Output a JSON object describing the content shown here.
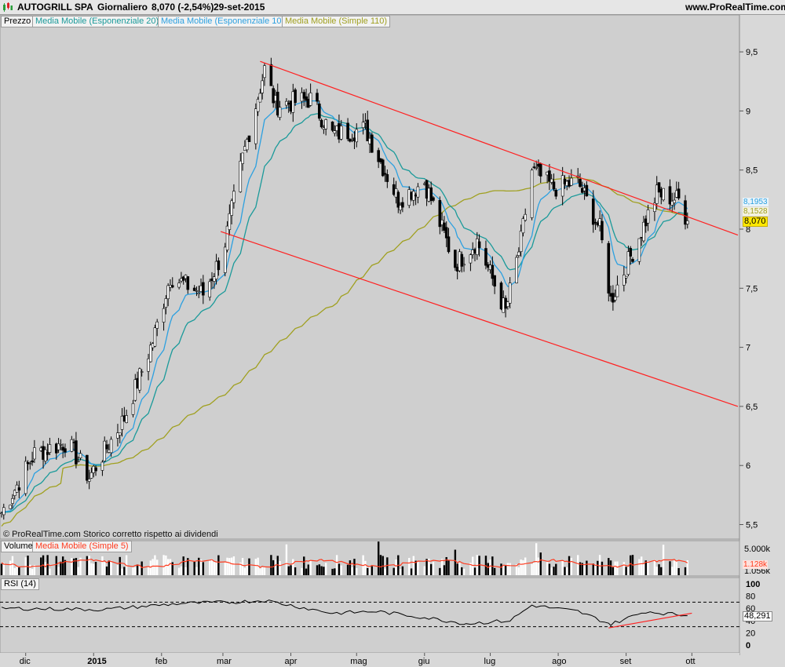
{
  "header": {
    "symbol": "AUTOGRILL SPA",
    "period": "Giornaliero",
    "quote": "8,070 (-2,54%)",
    "date": "29-set-2015",
    "site": "www.ProRealTime.com"
  },
  "legend": {
    "price": "Prezzo",
    "ema20": "Media Mobile (Esponenziale 20)",
    "ema10": "Media Mobile (Esponenziale 10)",
    "sma110": "Media Mobile (Simple 110)",
    "volume": "Volume",
    "vol_ma": "Media Mobile (Simple 5)",
    "rsi": "RSI (14)"
  },
  "footer": "© ProRealTime.com  Storico corretto rispetto ai dividendi",
  "colors": {
    "background": "#cfcfcf",
    "ema20": "#1a9a9a",
    "ema10": "#2ca0e0",
    "sma110": "#a0a020",
    "trendline": "#ff2020",
    "volume_ma": "#ff3b1f",
    "candle_up": "#ffffff",
    "candle_down": "#000000"
  },
  "chart_data": [
    {
      "type": "candlestick",
      "title": "AUTOGRILL SPA",
      "x_ticks": [
        "dic",
        "2015",
        "feb",
        "mar",
        "apr",
        "mag",
        "giu",
        "lug",
        "ago",
        "set",
        "ott"
      ],
      "y_ticks": [
        "9,5",
        "9",
        "8,5",
        "8",
        "7,5",
        "7",
        "6,5",
        "6",
        "5,5"
      ],
      "ylim": [
        5.3,
        9.95
      ],
      "last_price": "8,070",
      "value_labels": {
        "ema10": "8,1953",
        "sma110": "8,1528"
      },
      "anchor_closes": [
        {
          "date": "2014-11-20",
          "close": 5.6
        },
        {
          "date": "2014-12-05",
          "close": 6.1
        },
        {
          "date": "2014-12-20",
          "close": 6.2
        },
        {
          "date": "2014-12-30",
          "close": 5.9
        },
        {
          "date": "2015-01-15",
          "close": 6.4
        },
        {
          "date": "2015-01-28",
          "close": 7.05
        },
        {
          "date": "2015-02-05",
          "close": 7.6
        },
        {
          "date": "2015-02-20",
          "close": 7.45
        },
        {
          "date": "2015-03-01",
          "close": 7.8
        },
        {
          "date": "2015-03-10",
          "close": 8.6
        },
        {
          "date": "2015-03-20",
          "close": 9.35
        },
        {
          "date": "2015-03-25",
          "close": 9.05
        },
        {
          "date": "2015-04-10",
          "close": 9.1
        },
        {
          "date": "2015-04-20",
          "close": 8.8
        },
        {
          "date": "2015-05-05",
          "close": 8.85
        },
        {
          "date": "2015-05-20",
          "close": 8.25
        },
        {
          "date": "2015-06-01",
          "close": 8.4
        },
        {
          "date": "2015-06-15",
          "close": 7.7
        },
        {
          "date": "2015-06-25",
          "close": 7.9
        },
        {
          "date": "2015-07-08",
          "close": 7.3
        },
        {
          "date": "2015-07-15",
          "close": 7.9
        },
        {
          "date": "2015-07-20",
          "close": 8.5
        },
        {
          "date": "2015-07-30",
          "close": 8.35
        },
        {
          "date": "2015-08-10",
          "close": 8.4
        },
        {
          "date": "2015-08-20",
          "close": 8.0
        },
        {
          "date": "2015-08-25",
          "close": 7.4
        },
        {
          "date": "2015-09-05",
          "close": 7.85
        },
        {
          "date": "2015-09-15",
          "close": 8.3
        },
        {
          "date": "2015-09-25",
          "close": 8.25
        },
        {
          "date": "2015-09-29",
          "close": 8.07
        }
      ],
      "trendlines": [
        {
          "from": [
            "2015-03-18",
            9.42
          ],
          "to": [
            "2015-10-22",
            7.95
          ]
        },
        {
          "from": [
            "2015-02-28",
            7.98
          ],
          "to": [
            "2015-10-22",
            6.5
          ]
        }
      ]
    },
    {
      "type": "bar",
      "title": "Volume",
      "y_ticks": [
        "5.000k",
        "1.056k"
      ],
      "last_value": "1.056k",
      "ma_label": "1.128k"
    },
    {
      "type": "line",
      "title": "RSI (14)",
      "y_ticks": [
        "100",
        "80",
        "60",
        "40",
        "20",
        "0"
      ],
      "ylim": [
        0,
        100
      ],
      "reference_lines": [
        70,
        30
      ],
      "last_value": "48,291",
      "anchors": [
        {
          "date": "2014-11-20",
          "rsi": 60
        },
        {
          "date": "2015-01-05",
          "rsi": 58
        },
        {
          "date": "2015-02-10",
          "rsi": 68
        },
        {
          "date": "2015-03-05",
          "rsi": 70
        },
        {
          "date": "2015-03-20",
          "rsi": 73
        },
        {
          "date": "2015-04-20",
          "rsi": 52
        },
        {
          "date": "2015-05-10",
          "rsi": 55
        },
        {
          "date": "2015-06-01",
          "rsi": 45
        },
        {
          "date": "2015-06-20",
          "rsi": 35
        },
        {
          "date": "2015-07-10",
          "rsi": 40
        },
        {
          "date": "2015-07-20",
          "rsi": 65
        },
        {
          "date": "2015-08-10",
          "rsi": 55
        },
        {
          "date": "2015-08-25",
          "rsi": 34
        },
        {
          "date": "2015-09-10",
          "rsi": 55
        },
        {
          "date": "2015-09-29",
          "rsi": 48
        }
      ],
      "trendline": {
        "from": [
          "2015-08-24",
          28
        ],
        "to": [
          "2015-10-01",
          52
        ]
      }
    }
  ]
}
